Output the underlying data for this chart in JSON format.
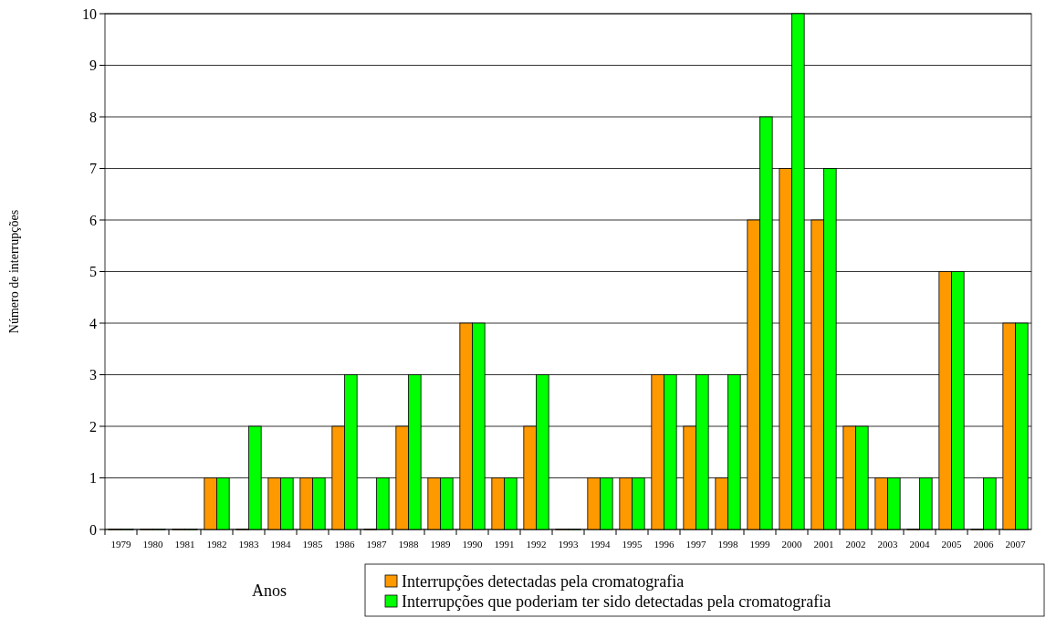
{
  "chart_data": {
    "type": "bar",
    "xlabel": "Anos",
    "ylabel": "Número de interrupções",
    "categories": [
      "1979",
      "1980",
      "1981",
      "1982",
      "1983",
      "1984",
      "1985",
      "1986",
      "1987",
      "1988",
      "1989",
      "1990",
      "1991",
      "1992",
      "1993",
      "1994",
      "1995",
      "1996",
      "1997",
      "1998",
      "1999",
      "2000",
      "2001",
      "2002",
      "2003",
      "2004",
      "2005",
      "2006",
      "2007"
    ],
    "series": [
      {
        "name": "Interrupções detectadas pela cromatografia",
        "color": "#ff9900",
        "values": [
          0,
          0,
          0,
          1,
          0,
          1,
          1,
          2,
          0,
          2,
          1,
          4,
          1,
          2,
          0,
          1,
          1,
          3,
          2,
          1,
          6,
          7,
          6,
          2,
          1,
          0,
          5,
          0,
          4
        ]
      },
      {
        "name": "Interrupções que poderiam ter sido detectadas pela cromatografia",
        "color": "#00ff00",
        "values": [
          0,
          0,
          0,
          1,
          2,
          1,
          1,
          3,
          1,
          3,
          1,
          4,
          1,
          3,
          0,
          1,
          1,
          3,
          3,
          3,
          8,
          10,
          7,
          2,
          1,
          1,
          5,
          1,
          4
        ]
      }
    ],
    "ylim": [
      0,
      10
    ],
    "yticks": [
      0,
      1,
      2,
      3,
      4,
      5,
      6,
      7,
      8,
      9,
      10
    ],
    "grid": "y",
    "legend": "bottom right"
  }
}
